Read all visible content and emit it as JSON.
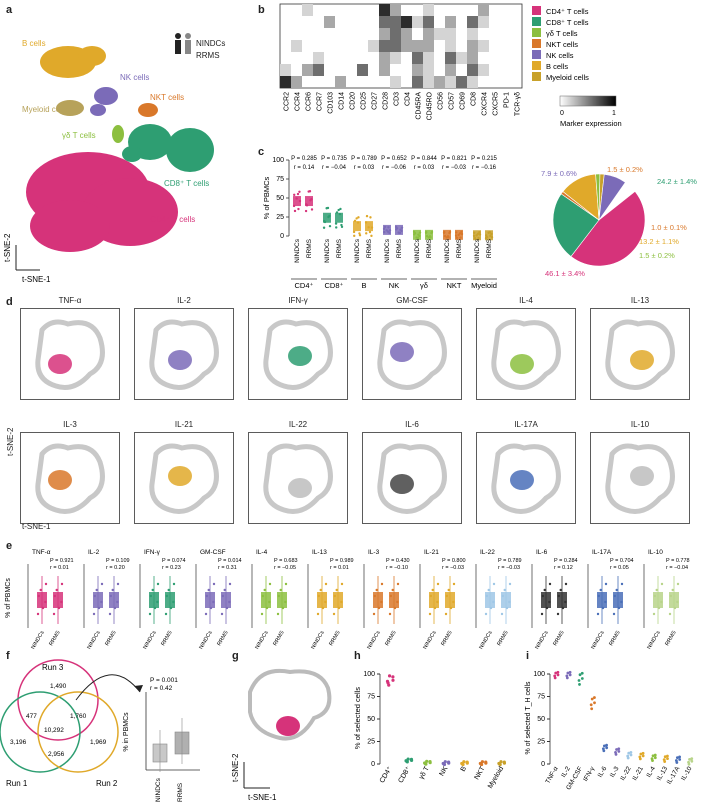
{
  "panels": {
    "a": "a",
    "b": "b",
    "c": "c",
    "d": "d",
    "e": "e",
    "f": "f",
    "g": "g",
    "h": "h",
    "i": "i"
  },
  "colors": {
    "cd4": "#d6337a",
    "cd8": "#2e9e72",
    "gd": "#8cbf3f",
    "nkt": "#d9782a",
    "nk": "#7b6bb8",
    "b": "#e0a92a",
    "myeloid": "#c8a12a",
    "gray": "#bdbdbd"
  },
  "panel_a": {
    "cell_labels": [
      "B cells",
      "NK cells",
      "Myeloid cells",
      "NKT cells",
      "γδ T cells",
      "CD8⁺ T cells",
      "CD4⁺ T cells"
    ],
    "legend": [
      "NINDCs",
      "RRMS"
    ],
    "axis_x": "t-SNE-1",
    "axis_y": "t-SNE-2"
  },
  "panel_b": {
    "markers": [
      "CCR2",
      "CCR4",
      "CCR6",
      "CCR7",
      "CD103",
      "CD14",
      "CD20",
      "CD25",
      "CD27",
      "CD28",
      "CD3",
      "CD4",
      "CD45RA",
      "CD45RO",
      "CD56",
      "CD57",
      "CD69",
      "CD8",
      "CXCR4",
      "CXCR5",
      "PD-1",
      "TCR-γδ"
    ],
    "legend": [
      "CD4⁺ T cells",
      "CD8⁺ T cells",
      "γδ T cells",
      "NKT cells",
      "NK cells",
      "B cells",
      "Myeloid cells"
    ],
    "scale_title": "Marker expression",
    "scale_min": "0",
    "scale_max": "1"
  },
  "panel_c": {
    "ylabel": "% of PBMCs",
    "yticks": [
      "0",
      "25",
      "50",
      "75",
      "100"
    ],
    "groups": [
      "CD4⁺",
      "CD8⁺",
      "B",
      "NK",
      "γδ",
      "NKT",
      "Myeloid"
    ],
    "conditions": [
      "NINDCs",
      "RRMS"
    ],
    "pvals": [
      "P = 0.285",
      "P = 0.735",
      "P = 0.789",
      "P = 0.652",
      "P = 0.844",
      "P = 0.821",
      "P = 0.215"
    ],
    "rvals": [
      "r = 0.14",
      "r = −0.04",
      "r = 0.03",
      "r = −0.06",
      "r = 0.03",
      "r = −0.03",
      "r = −0.16"
    ],
    "pie_labels": [
      "7.9 ± 0.6%",
      "1.5 ± 0.2%",
      "24.2 ± 1.4%",
      "1.0 ± 0.1%",
      "13.2 ± 1.1%",
      "1.5 ± 0.2%",
      "46.1 ± 3.4%"
    ]
  },
  "panel_d": {
    "cytokines": [
      "TNF-α",
      "IL-2",
      "IFN-γ",
      "GM-CSF",
      "IL-4",
      "IL-13",
      "IL-3",
      "IL-21",
      "IL-22",
      "IL-6",
      "IL-17A",
      "IL-10"
    ],
    "axis_x": "t-SNE-1",
    "axis_y": "t-SNE-2"
  },
  "panel_e": {
    "ylabel": "% of PBMCs",
    "cytokines": [
      "TNF-α",
      "IL-2",
      "IFN-γ",
      "GM-CSF",
      "IL-4",
      "IL-13",
      "IL-3",
      "IL-21",
      "IL-22",
      "IL-6",
      "IL-17A",
      "IL-10"
    ],
    "pvals": [
      "P = 0.921",
      "P = 0.109",
      "P = 0.074",
      "P = 0.014",
      "P = 0.683",
      "P = 0.989",
      "P = 0.430",
      "P = 0.800",
      "P = 0.789",
      "P = 0.284",
      "P = 0.704",
      "P = 0.778"
    ],
    "rvals": [
      "r = 0.01",
      "r = 0.20",
      "r = 0.23",
      "r = 0.31",
      "r = −0.05",
      "r = 0.01",
      "r = −0.10",
      "r = −0.03",
      "r = −0.03",
      "r = 0.12",
      "r = 0.05",
      "r = −0.04"
    ],
    "conditions": [
      "NINDCs",
      "RRMS"
    ]
  },
  "panel_f": {
    "runs": [
      "Run 1",
      "Run 2",
      "Run 3"
    ],
    "venn_counts": [
      "1,490",
      "477",
      "1,760",
      "10,292",
      "3,196",
      "2,956",
      "1,969"
    ],
    "ylabel": "% in PBMCs",
    "p": "P = 0.001",
    "r": "r = 0.42",
    "conditions": [
      "NINDCs",
      "RRMS"
    ]
  },
  "panel_g": {
    "axis_x": "t-SNE-1",
    "axis_y": "t-SNE-2"
  },
  "panel_h": {
    "ylabel": "% of selected cells",
    "yticks": [
      "0",
      "25",
      "50",
      "75",
      "100"
    ],
    "categories": [
      "CD4⁺",
      "CD8⁺",
      "γδ T",
      "NK",
      "B",
      "NKT",
      "Myeloid"
    ]
  },
  "panel_i": {
    "ylabel": "% of selected T_H cells",
    "yticks": [
      "0",
      "25",
      "50",
      "75",
      "100"
    ],
    "categories": [
      "TNF-α",
      "IL-2",
      "GM-CSF",
      "IFN-γ",
      "IL-6",
      "IL-3",
      "IL-22",
      "IL-21",
      "IL-4",
      "IL-13",
      "IL-17A",
      "IL-10"
    ]
  }
}
